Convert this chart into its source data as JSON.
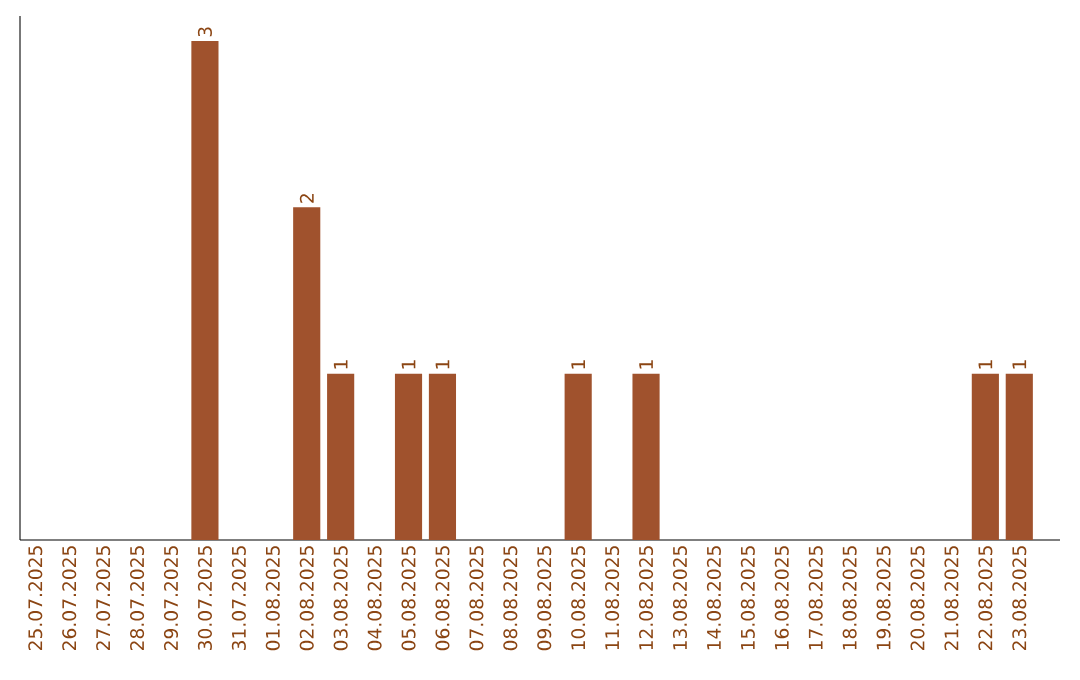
{
  "chart_data": {
    "type": "bar",
    "categories": [
      "25.07.2025",
      "26.07.2025",
      "27.07.2025",
      "28.07.2025",
      "29.07.2025",
      "30.07.2025",
      "31.07.2025",
      "01.08.2025",
      "02.08.2025",
      "03.08.2025",
      "04.08.2025",
      "05.08.2025",
      "06.08.2025",
      "07.08.2025",
      "08.08.2025",
      "09.08.2025",
      "10.08.2025",
      "11.08.2025",
      "12.08.2025",
      "13.08.2025",
      "14.08.2025",
      "15.08.2025",
      "16.08.2025",
      "17.08.2025",
      "18.08.2025",
      "19.08.2025",
      "20.08.2025",
      "21.08.2025",
      "22.08.2025",
      "23.08.2025"
    ],
    "values": [
      0,
      0,
      0,
      0,
      0,
      3,
      0,
      0,
      2,
      1,
      0,
      1,
      1,
      0,
      0,
      0,
      1,
      0,
      1,
      0,
      0,
      0,
      0,
      0,
      0,
      0,
      0,
      0,
      1,
      1
    ],
    "value_labels": [
      null,
      null,
      null,
      null,
      null,
      "3",
      null,
      null,
      "2",
      "1",
      null,
      "1",
      "1",
      null,
      null,
      null,
      "1",
      null,
      "1",
      null,
      null,
      null,
      null,
      null,
      null,
      null,
      null,
      null,
      "1",
      "1"
    ],
    "color": "#a0522d",
    "ylim": [
      0,
      3.15
    ],
    "tick_labels": "x"
  }
}
